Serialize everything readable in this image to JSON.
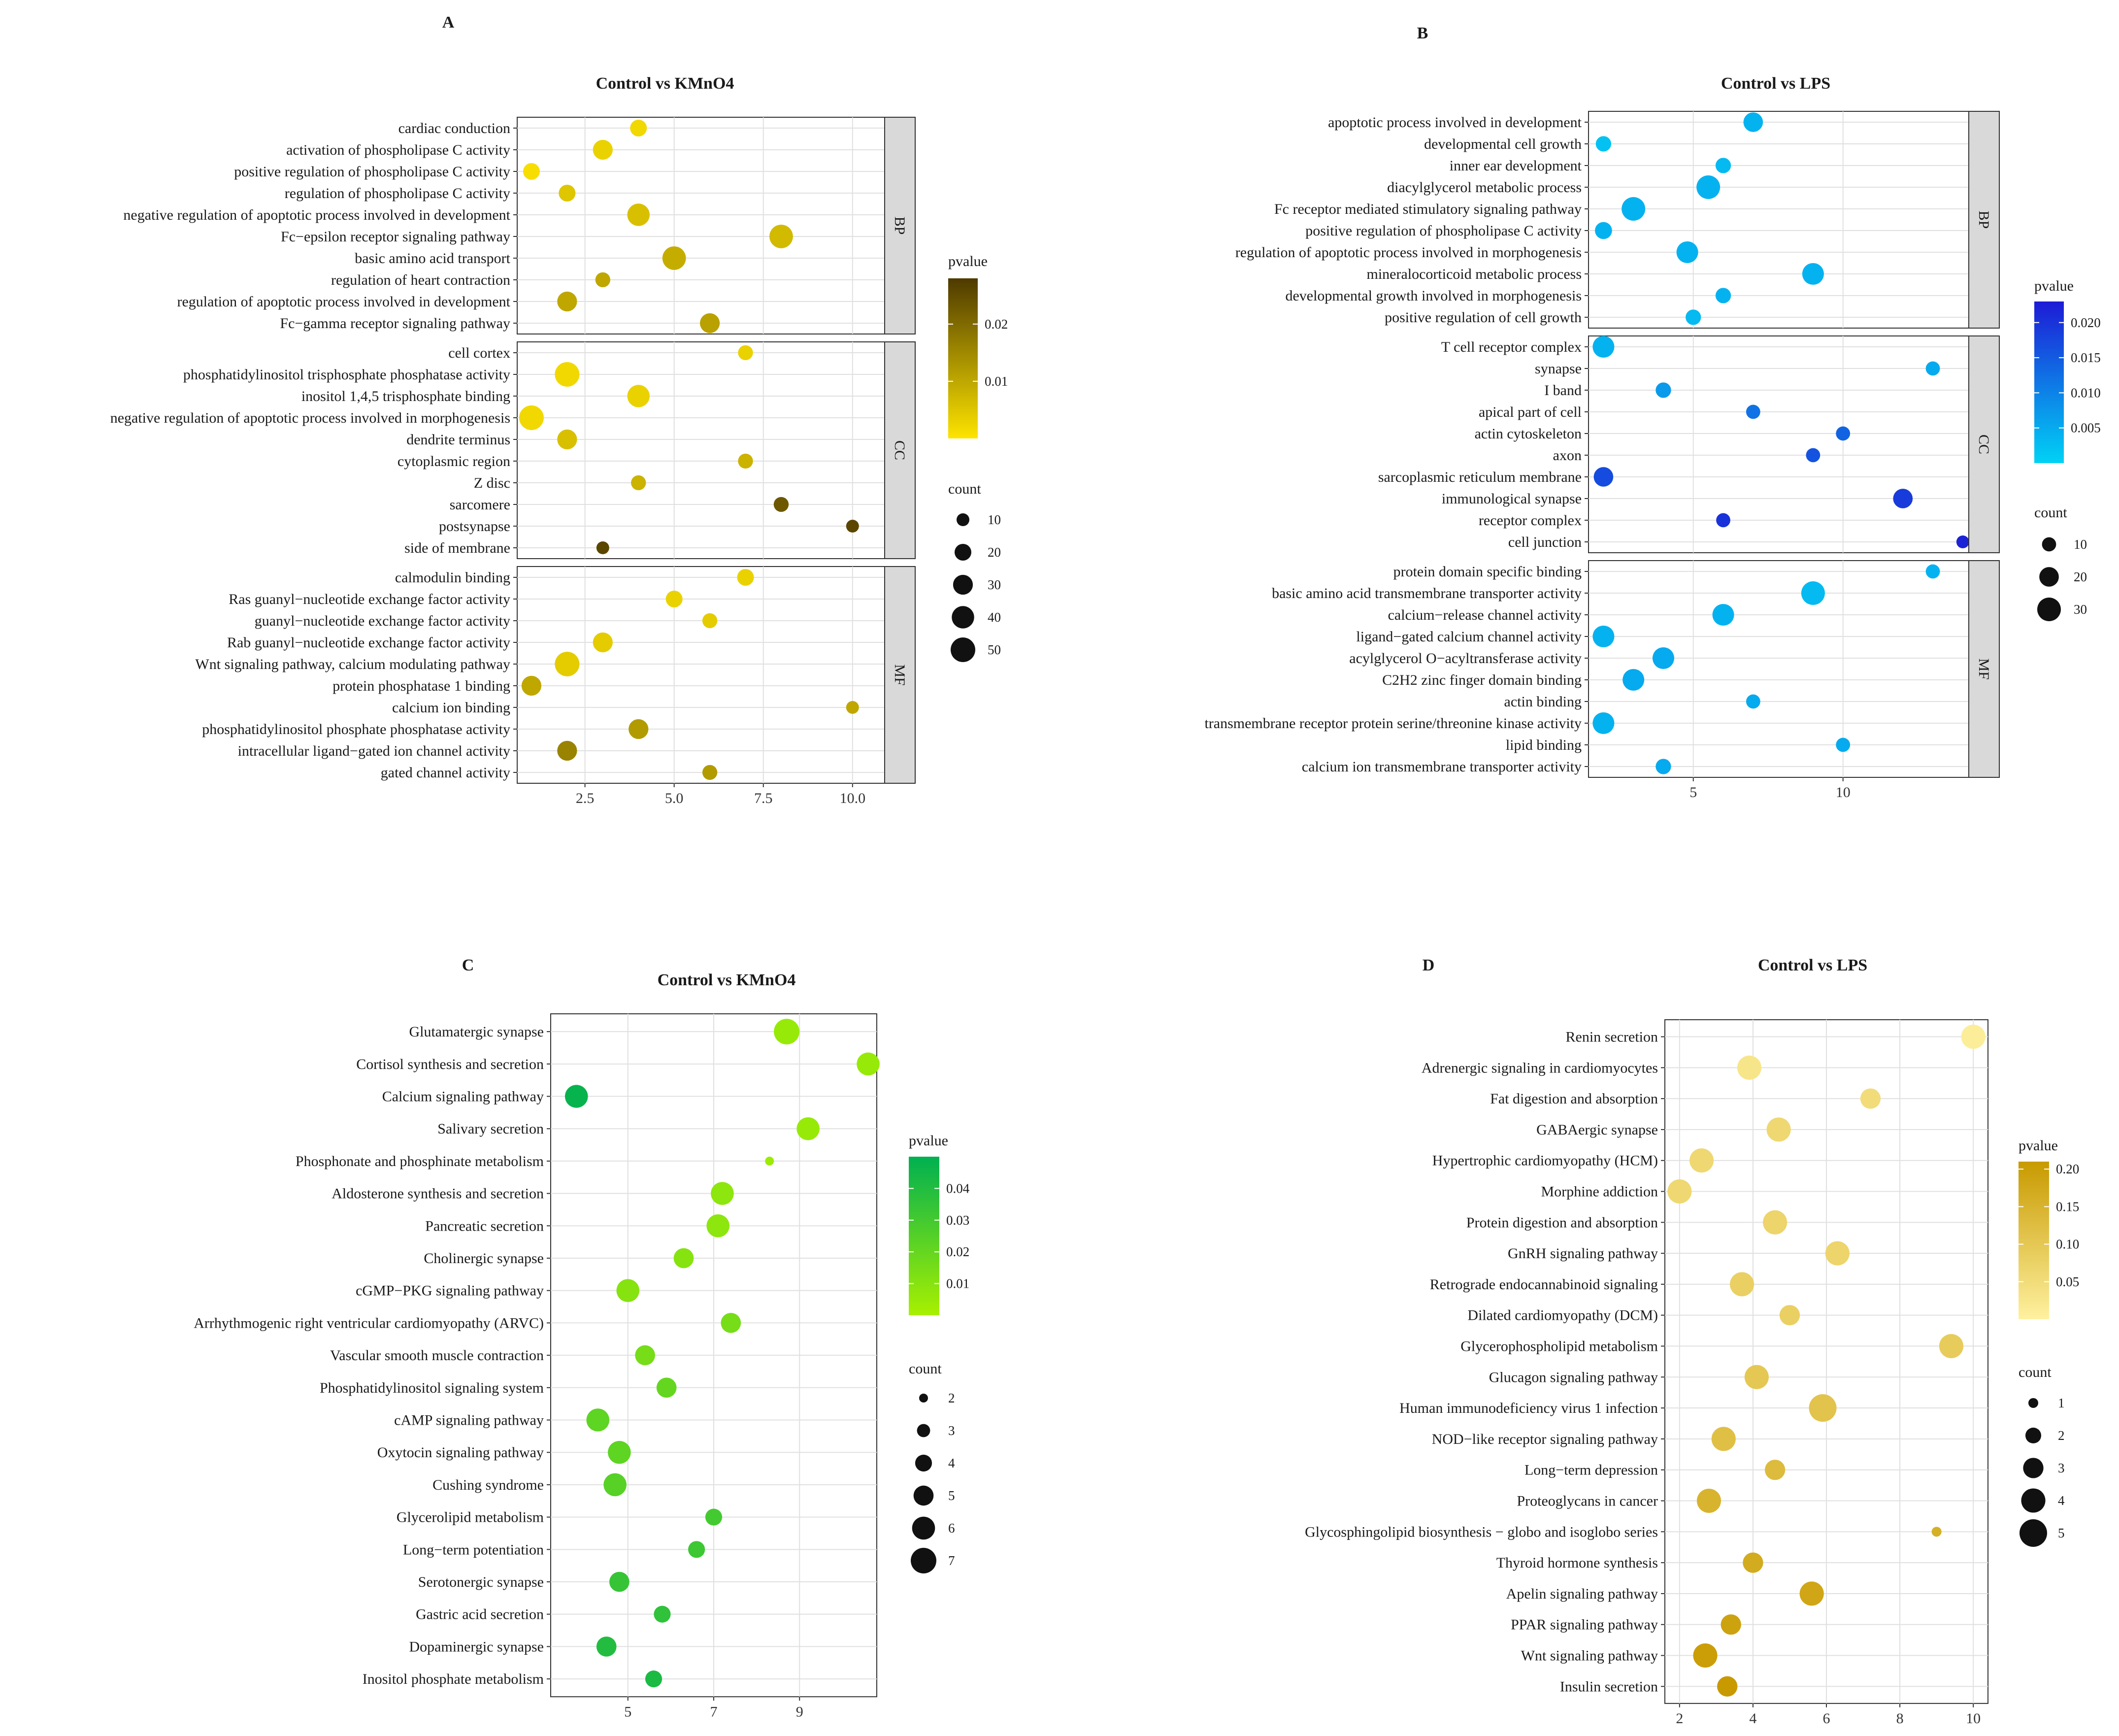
{
  "figure": {
    "colors": {
      "A": [
        "#fde400",
        "#4e3a00"
      ],
      "B": [
        "#00d2f5",
        "#1d1bd6"
      ],
      "C": [
        "#a8f000",
        "#00b050"
      ],
      "D": [
        "#fff1a0",
        "#c89a00"
      ],
      "grid": "#e0e0e0",
      "strip": "#d9d9d9"
    }
  },
  "chart_data": [
    {
      "panel": "A",
      "type": "scatter",
      "title": "Control vs KMnO4",
      "xlim": [
        0.6,
        10.9
      ],
      "xticks": [
        2.5,
        5.0,
        7.5,
        10.0
      ],
      "xtick_labels": [
        "2.5",
        "5.0",
        "7.5",
        "10.0"
      ],
      "groups": [
        {
          "label": "BP",
          "terms": [
            "cardiac conduction",
            "activation of phospholipase C activity",
            "positive regulation of phospholipase C activity",
            "regulation of phospholipase C activity",
            "negative regulation of apoptotic process involved in development",
            "Fc−epsilon receptor signaling pathway",
            "basic amino acid transport",
            "regulation of heart contraction",
            "regulation of apoptotic process involved in development",
            "Fc−gamma receptor signaling pathway"
          ],
          "x": [
            4,
            3,
            1,
            2,
            4,
            8,
            5,
            3,
            2,
            6
          ],
          "count": [
            20,
            30,
            20,
            20,
            40,
            45,
            45,
            15,
            30,
            30
          ],
          "pvalue": [
            0.002,
            0.003,
            0.001,
            0.005,
            0.006,
            0.007,
            0.009,
            0.01,
            0.01,
            0.011
          ]
        },
        {
          "label": "CC",
          "terms": [
            "cell cortex",
            "phosphatidylinositol trisphosphate phosphatase activity",
            "inositol 1,4,5 trisphosphate binding",
            "negative regulation of apoptotic process involved in morphogenesis",
            "dendrite terminus",
            "cytoplasmic region",
            "Z disc",
            "sarcomere",
            "postsynapse",
            "side of membrane"
          ],
          "x": [
            7,
            2,
            4,
            1,
            2,
            7,
            4,
            8,
            10,
            3
          ],
          "count": [
            15,
            50,
            40,
            50,
            30,
            15,
            15,
            15,
            10,
            10
          ],
          "pvalue": [
            0.003,
            0.002,
            0.003,
            0.002,
            0.006,
            0.008,
            0.008,
            0.023,
            0.026,
            0.026
          ]
        },
        {
          "label": "MF",
          "terms": [
            "calmodulin binding",
            "Ras guanyl−nucleotide exchange factor activity",
            "guanyl−nucleotide exchange factor activity",
            "Rab guanyl−nucleotide exchange factor activity",
            "Wnt signaling pathway, calcium modulating pathway",
            "protein phosphatase 1 binding",
            "calcium ion binding",
            "phosphatidylinositol phosphate phosphatase activity",
            "intracellular ligand−gated ion channel activity",
            "gated channel activity"
          ],
          "x": [
            7,
            5,
            6,
            3,
            2,
            1,
            10,
            4,
            2,
            6
          ],
          "count": [
            20,
            20,
            15,
            30,
            50,
            30,
            10,
            30,
            30,
            15
          ],
          "pvalue": [
            0.003,
            0.003,
            0.004,
            0.004,
            0.004,
            0.01,
            0.01,
            0.012,
            0.016,
            0.012
          ]
        }
      ],
      "legend": {
        "color_title": "pvalue",
        "color_range": [
          0.0,
          0.028
        ],
        "color_ticks": [
          0.01,
          0.02
        ],
        "color_tick_labels": [
          "0.01",
          "0.02"
        ],
        "size_title": "count",
        "size_values": [
          10,
          20,
          30,
          40,
          50
        ],
        "size_labels": [
          "10",
          "20",
          "30",
          "40",
          "50"
        ],
        "size_range": [
          10,
          50
        ]
      }
    },
    {
      "panel": "B",
      "type": "scatter",
      "title": "Control vs LPS",
      "xlim": [
        1.5,
        14.2
      ],
      "xticks": [
        5,
        10
      ],
      "xtick_labels": [
        "5",
        "10"
      ],
      "groups": [
        {
          "label": "BP",
          "terms": [
            "apoptotic process involved in development",
            "developmental cell growth",
            "inner ear development",
            "diacylglycerol metabolic process",
            "Fc receptor mediated stimulatory signaling pathway",
            "positive regulation of phospholipase C activity",
            "regulation of apoptotic process involved in morphogenesis",
            "mineralocorticoid metabolic process",
            "developmental growth involved in morphogenesis",
            "positive regulation of cell growth"
          ],
          "x": [
            7,
            2,
            6,
            5.5,
            3,
            2,
            4.8,
            9,
            6,
            5
          ],
          "count": [
            20,
            12,
            12,
            30,
            30,
            15,
            25,
            25,
            12,
            12
          ],
          "pvalue": [
            0.004,
            0.002,
            0.003,
            0.004,
            0.004,
            0.004,
            0.004,
            0.004,
            0.004,
            0.003
          ]
        },
        {
          "label": "CC",
          "terms": [
            "T cell receptor complex",
            "synapse",
            "I band",
            "apical part of cell",
            "actin cytoskeleton",
            "axon",
            "sarcoplasmic reticulum membrane",
            "immunological synapse",
            "receptor complex",
            "cell junction"
          ],
          "x": [
            2,
            13,
            4,
            7,
            10,
            9,
            2,
            12,
            6,
            14
          ],
          "count": [
            25,
            10,
            12,
            10,
            10,
            10,
            20,
            20,
            10,
            8
          ],
          "pvalue": [
            0.004,
            0.005,
            0.007,
            0.012,
            0.014,
            0.016,
            0.017,
            0.019,
            0.02,
            0.022
          ]
        },
        {
          "label": "MF",
          "terms": [
            "protein domain specific binding",
            "basic amino acid transmembrane transporter activity",
            "calcium−release channel activity",
            "ligand−gated calcium channel activity",
            "acylglycerol O−acyltransferase activity",
            "C2H2 zinc finger domain binding",
            "actin binding",
            "transmembrane receptor protein serine/threonine kinase activity",
            "lipid binding",
            "calcium ion transmembrane transporter activity"
          ],
          "x": [
            13,
            9,
            6,
            2,
            4,
            3,
            7,
            2,
            10,
            4
          ],
          "count": [
            10,
            30,
            25,
            25,
            25,
            25,
            10,
            25,
            10,
            12
          ],
          "pvalue": [
            0.004,
            0.003,
            0.004,
            0.004,
            0.005,
            0.005,
            0.005,
            0.004,
            0.005,
            0.005
          ]
        }
      ],
      "legend": {
        "color_title": "pvalue",
        "color_range": [
          0.0,
          0.023
        ],
        "color_ticks": [
          0.005,
          0.01,
          0.015,
          0.02
        ],
        "color_tick_labels": [
          "0.005",
          "0.010",
          "0.015",
          "0.020"
        ],
        "size_title": "count",
        "size_values": [
          10,
          20,
          30
        ],
        "size_labels": [
          "10",
          "20",
          "30"
        ],
        "size_range": [
          8,
          30
        ]
      }
    },
    {
      "panel": "C",
      "type": "scatter",
      "title": "Control vs KMnO4",
      "xlim": [
        3.2,
        10.8
      ],
      "xticks": [
        5,
        7,
        9
      ],
      "xtick_labels": [
        "5",
        "7",
        "9"
      ],
      "terms": [
        "Glutamatergic synapse",
        "Cortisol synthesis and secretion",
        "Calcium signaling pathway",
        "Salivary secretion",
        "Phosphonate and phosphinate metabolism",
        "Aldosterone synthesis and secretion",
        "Pancreatic secretion",
        "Cholinergic synapse",
        "cGMP−PKG signaling pathway",
        "Arrhythmogenic right ventricular cardiomyopathy (ARVC)",
        "Vascular smooth muscle contraction",
        "Phosphatidylinositol signaling system",
        "cAMP signaling pathway",
        "Oxytocin signaling pathway",
        "Cushing syndrome",
        "Glycerolipid metabolism",
        "Long−term potentiation",
        "Serotonergic synapse",
        "Gastric acid secretion",
        "Dopaminergic synapse",
        "Inositol phosphate metabolism"
      ],
      "x": [
        8.7,
        10.6,
        3.8,
        9.2,
        8.3,
        7.2,
        7.1,
        6.3,
        5.0,
        7.4,
        5.4,
        5.9,
        4.3,
        4.8,
        4.7,
        7.0,
        6.6,
        4.8,
        5.8,
        4.5,
        5.6
      ],
      "count": [
        7,
        6,
        6,
        6,
        2,
        6,
        6,
        5,
        6,
        5,
        5,
        5,
        6,
        6,
        6,
        4,
        4,
        5,
        4,
        5,
        4
      ],
      "pvalue": [
        0.005,
        0.005,
        0.048,
        0.005,
        0.004,
        0.008,
        0.008,
        0.01,
        0.01,
        0.015,
        0.015,
        0.02,
        0.022,
        0.022,
        0.024,
        0.03,
        0.032,
        0.034,
        0.036,
        0.04,
        0.042
      ],
      "legend": {
        "color_title": "pvalue",
        "color_range": [
          0.0,
          0.05
        ],
        "color_ticks": [
          0.01,
          0.02,
          0.03,
          0.04
        ],
        "color_tick_labels": [
          "0.01",
          "0.02",
          "0.03",
          "0.04"
        ],
        "size_title": "count",
        "size_values": [
          2,
          3,
          4,
          5,
          6,
          7
        ],
        "size_labels": [
          "2",
          "3",
          "4",
          "5",
          "6",
          "7"
        ],
        "size_range": [
          2,
          7
        ]
      }
    },
    {
      "panel": "D",
      "type": "scatter",
      "title": "Control vs LPS",
      "xlim": [
        1.6,
        10.4
      ],
      "xticks": [
        2,
        4,
        6,
        8,
        10
      ],
      "xtick_labels": [
        "2",
        "4",
        "6",
        "8",
        "10"
      ],
      "terms": [
        "Renin secretion",
        "Adrenergic signaling in cardiomyocytes",
        "Fat digestion and absorption",
        "GABAergic synapse",
        "Hypertrophic cardiomyopathy (HCM)",
        "Morphine addiction",
        "Protein digestion and absorption",
        "GnRH signaling pathway",
        "Retrograde endocannabinoid signaling",
        "Dilated cardiomyopathy (DCM)",
        "Glycerophospholipid metabolism",
        "Glucagon signaling pathway",
        "Human immunodeficiency virus 1 infection",
        "NOD−like receptor signaling pathway",
        "Long−term depression",
        "Proteoglycans in cancer",
        "Glycosphingolipid biosynthesis − globo and isoglobo series",
        "Thyroid hormone synthesis",
        "Apelin signaling pathway",
        "PPAR signaling pathway",
        "Wnt signaling pathway",
        "Insulin secretion"
      ],
      "x": [
        10,
        3.9,
        7.2,
        4.7,
        2.6,
        2.0,
        4.6,
        6.3,
        3.7,
        5.0,
        9.4,
        4.1,
        5.9,
        3.2,
        4.6,
        2.8,
        9.0,
        4.0,
        5.6,
        3.4,
        2.7,
        3.3
      ],
      "count": [
        4,
        4,
        3,
        4,
        4,
        4,
        4,
        4,
        4,
        3,
        4,
        4,
        5,
        4,
        3,
        4,
        1,
        3,
        4,
        3,
        4,
        3
      ],
      "pvalue": [
        0.01,
        0.03,
        0.05,
        0.06,
        0.06,
        0.06,
        0.07,
        0.07,
        0.08,
        0.08,
        0.09,
        0.1,
        0.11,
        0.12,
        0.13,
        0.15,
        0.16,
        0.17,
        0.18,
        0.19,
        0.2,
        0.21
      ],
      "legend": {
        "color_title": "pvalue",
        "color_range": [
          0.0,
          0.21
        ],
        "color_ticks": [
          0.05,
          0.1,
          0.15,
          0.2
        ],
        "color_tick_labels": [
          "0.05",
          "0.10",
          "0.15",
          "0.20"
        ],
        "size_title": "count",
        "size_values": [
          1,
          2,
          3,
          4,
          5
        ],
        "size_labels": [
          "1",
          "2",
          "3",
          "4",
          "5"
        ],
        "size_range": [
          1,
          5
        ]
      }
    }
  ]
}
